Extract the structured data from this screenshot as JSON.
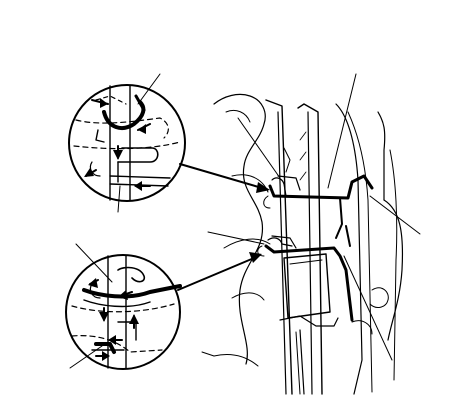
{
  "figure": {
    "description_items": [],
    "colors": {
      "ink": "#000000",
      "paper": "#ffffff"
    }
  },
  "callouts": [
    {
      "id": "leader-top-left-inset"
    },
    {
      "id": "leader-top-center"
    },
    {
      "id": "leader-mid-left"
    },
    {
      "id": "leader-right-upper"
    },
    {
      "id": "leader-left-lower"
    },
    {
      "id": "leader-left-upper-inset2"
    },
    {
      "id": "leader-bottom-left"
    },
    {
      "id": "leader-bottom-right"
    }
  ]
}
